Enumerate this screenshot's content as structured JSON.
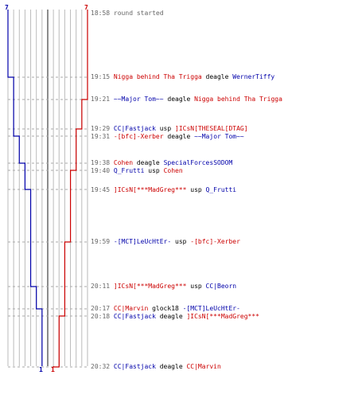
{
  "start": {
    "time": "18:58",
    "text": "round started"
  },
  "team_counts": {
    "blue_top": "7",
    "red_top": "7",
    "blue_bottom": "1",
    "red_bottom": "1"
  },
  "colors": {
    "red": "#cc0000",
    "blue": "#0000aa",
    "grid": "#bbbbbb",
    "axis": "#666666"
  },
  "events": [
    {
      "time": "19:15",
      "killer": "Nigga behind Tha Trigga",
      "killer_team": "red",
      "weapon": "deagle",
      "victim": "WernerTiffy",
      "victim_team": "blue"
    },
    {
      "time": "19:21",
      "killer": "~~Major Tom~~",
      "killer_team": "blue",
      "weapon": "deagle",
      "victim": "Nigga behind Tha Trigga",
      "victim_team": "red"
    },
    {
      "time": "19:29",
      "killer": "CC|Fastjack",
      "killer_team": "blue",
      "weapon": "usp",
      "victim": "]ICsN[THESEAL[DTAG]",
      "victim_team": "red"
    },
    {
      "time": "19:31",
      "killer": "-[bfc]-Xerber",
      "killer_team": "red",
      "weapon": "deagle",
      "victim": "~~Major Tom~~",
      "victim_team": "blue"
    },
    {
      "time": "19:38",
      "killer": "Cohen",
      "killer_team": "red",
      "weapon": "deagle",
      "victim": "SpecialForcesSODOM",
      "victim_team": "blue"
    },
    {
      "time": "19:40",
      "killer": "Q_Frutti",
      "killer_team": "blue",
      "weapon": "usp",
      "victim": "Cohen",
      "victim_team": "red"
    },
    {
      "time": "19:45",
      "killer": "]ICsN[***MadGreg***",
      "killer_team": "red",
      "weapon": "usp",
      "victim": "Q_Frutti",
      "victim_team": "blue"
    },
    {
      "time": "19:59",
      "killer": "-[MCT]LeUcHtEr-",
      "killer_team": "blue",
      "weapon": "usp",
      "victim": "-[bfc]-Xerber",
      "victim_team": "red"
    },
    {
      "time": "20:11",
      "killer": "]ICsN[***MadGreg***",
      "killer_team": "red",
      "weapon": "usp",
      "victim": "CC|Beorn",
      "victim_team": "blue"
    },
    {
      "time": "20:17",
      "killer": "CC|Marvin",
      "killer_team": "red",
      "weapon": "glock18",
      "victim": "-[MCT]LeUcHtEr-",
      "victim_team": "blue"
    },
    {
      "time": "20:18",
      "killer": "CC|Fastjack",
      "killer_team": "blue",
      "weapon": "deagle",
      "victim": "]ICsN[***MadGreg***",
      "victim_team": "red"
    },
    {
      "time": "20:32",
      "killer": "CC|Fastjack",
      "killer_team": "blue",
      "weapon": "deagle",
      "victim": "CC|Marvin",
      "victim_team": "red"
    }
  ]
}
